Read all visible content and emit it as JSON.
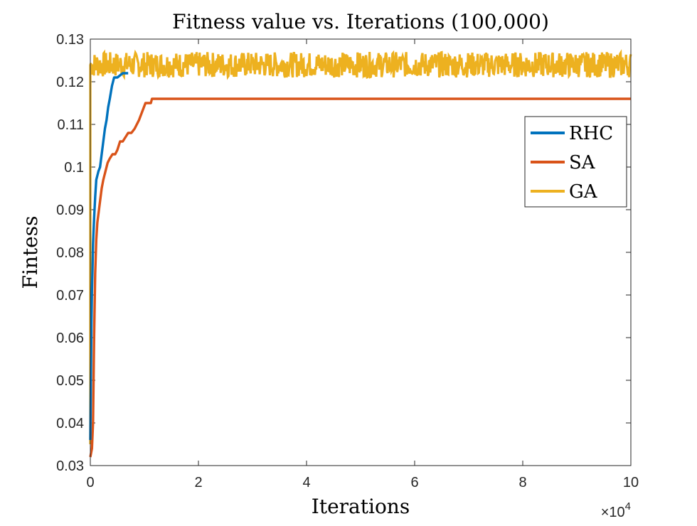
{
  "chart_data": {
    "type": "line",
    "title": "Fitness value vs. Iterations (100,000)",
    "xlabel": "Iterations",
    "ylabel": "Fintess",
    "xlim": [
      0,
      100000
    ],
    "ylim": [
      0.03,
      0.13
    ],
    "x_ticks": [
      0,
      20000,
      40000,
      60000,
      80000,
      100000
    ],
    "x_tick_labels": [
      "0",
      "2",
      "4",
      "6",
      "8",
      "10"
    ],
    "x_exponent_label": "×10",
    "x_exponent_power": "4",
    "y_ticks": [
      0.03,
      0.04,
      0.05,
      0.06,
      0.07,
      0.08,
      0.09,
      0.1,
      0.11,
      0.12,
      0.13
    ],
    "y_tick_labels": [
      "0.03",
      "0.04",
      "0.05",
      "0.06",
      "0.07",
      "0.08",
      "0.09",
      "0.1",
      "0.11",
      "0.12",
      "0.13"
    ],
    "legend_position": "upper-right",
    "grid": false,
    "series": [
      {
        "name": "RHC",
        "color": "#0072BD",
        "x": [
          0,
          100,
          200,
          300,
          400,
          500,
          700,
          900,
          1100,
          1300,
          1500,
          1800,
          2100,
          2400,
          2700,
          3000,
          3300,
          3600,
          4000,
          4400,
          5000,
          6000,
          7000
        ],
        "y": [
          0.036,
          0.05,
          0.062,
          0.071,
          0.076,
          0.082,
          0.088,
          0.093,
          0.097,
          0.098,
          0.099,
          0.1,
          0.103,
          0.106,
          0.109,
          0.111,
          0.114,
          0.116,
          0.119,
          0.121,
          0.121,
          0.122,
          0.122
        ]
      },
      {
        "name": "SA",
        "color": "#D95319",
        "x": [
          0,
          150,
          300,
          500,
          700,
          900,
          1100,
          1300,
          1500,
          1800,
          2100,
          2400,
          2800,
          3200,
          3600,
          4100,
          4600,
          5000,
          5500,
          6000,
          6500,
          7000,
          7600,
          8200,
          9000,
          9600,
          10200,
          10700,
          11200,
          11400,
          20000,
          40000,
          60000,
          80000,
          100000
        ],
        "y": [
          0.032,
          0.033,
          0.034,
          0.04,
          0.06,
          0.075,
          0.083,
          0.087,
          0.089,
          0.092,
          0.095,
          0.097,
          0.099,
          0.101,
          0.102,
          0.103,
          0.103,
          0.104,
          0.106,
          0.106,
          0.107,
          0.108,
          0.108,
          0.109,
          0.111,
          0.113,
          0.115,
          0.115,
          0.115,
          0.116,
          0.116,
          0.116,
          0.116,
          0.116,
          0.116
        ]
      },
      {
        "name": "GA",
        "color": "#EDB120",
        "x_start": 0,
        "x_end": 100000,
        "initial_value": 0.035,
        "level_min": 0.121,
        "level_max": 0.127,
        "level_mean": 0.124
      }
    ]
  }
}
